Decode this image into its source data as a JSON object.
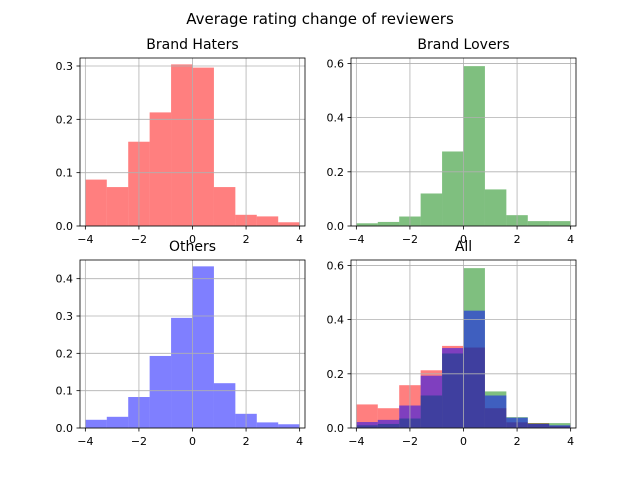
{
  "figure": {
    "suptitle": "Average rating change of reviewers"
  },
  "chart_data": [
    {
      "type": "bar",
      "title": "Brand Haters",
      "xlim": [
        -4.2,
        4.2
      ],
      "ylim": [
        0,
        0.315
      ],
      "xticks": [
        -4,
        -2,
        0,
        2,
        4
      ],
      "yticks": [
        0.0,
        0.1,
        0.2,
        0.3
      ],
      "ytick_labels": [
        "0.0",
        "0.1",
        "0.2",
        "0.3"
      ],
      "xtick_labels": [
        "−4",
        "−2",
        "0",
        "2",
        "4"
      ],
      "grid": true,
      "series": [
        {
          "color": "#ff0000",
          "alpha": 0.5,
          "bin_edges": [
            -4,
            -3.2,
            -2.4,
            -1.6,
            -0.8,
            0,
            0.8,
            1.6,
            2.4,
            3.2,
            4
          ],
          "values": [
            0.087,
            0.073,
            0.158,
            0.213,
            0.303,
            0.297,
            0.073,
            0.021,
            0.018,
            0.007
          ]
        }
      ]
    },
    {
      "type": "bar",
      "title": "Brand Lovers",
      "xlim": [
        -4.2,
        4.2
      ],
      "ylim": [
        0,
        0.62
      ],
      "xticks": [
        -4,
        -2,
        0,
        2,
        4
      ],
      "yticks": [
        0.0,
        0.2,
        0.4,
        0.6
      ],
      "ytick_labels": [
        "0.0",
        "0.2",
        "0.4",
        "0.6"
      ],
      "xtick_labels": [
        "−4",
        "−2",
        "0",
        "2",
        "4"
      ],
      "grid": true,
      "series": [
        {
          "color": "#008000",
          "alpha": 0.5,
          "bin_edges": [
            -4,
            -3.2,
            -2.4,
            -1.6,
            -0.8,
            0,
            0.8,
            1.6,
            2.4,
            3.2,
            4
          ],
          "values": [
            0.01,
            0.015,
            0.035,
            0.12,
            0.275,
            0.59,
            0.135,
            0.04,
            0.018,
            0.018
          ]
        }
      ]
    },
    {
      "type": "bar",
      "title": "Others",
      "xlim": [
        -4.2,
        4.2
      ],
      "ylim": [
        0,
        0.45
      ],
      "xticks": [
        -4,
        -2,
        0,
        2,
        4
      ],
      "yticks": [
        0.0,
        0.1,
        0.2,
        0.3,
        0.4
      ],
      "ytick_labels": [
        "0.0",
        "0.1",
        "0.2",
        "0.3",
        "0.4"
      ],
      "xtick_labels": [
        "−4",
        "−2",
        "0",
        "2",
        "4"
      ],
      "grid": true,
      "series": [
        {
          "color": "#0000ff",
          "alpha": 0.5,
          "bin_edges": [
            -4,
            -3.2,
            -2.4,
            -1.6,
            -0.8,
            0,
            0.8,
            1.6,
            2.4,
            3.2,
            4
          ],
          "values": [
            0.022,
            0.03,
            0.083,
            0.193,
            0.295,
            0.433,
            0.12,
            0.038,
            0.015,
            0.01
          ]
        }
      ]
    },
    {
      "type": "bar",
      "title": "All",
      "xlim": [
        -4.2,
        4.2
      ],
      "ylim": [
        0,
        0.62
      ],
      "xticks": [
        -4,
        -2,
        0,
        2,
        4
      ],
      "yticks": [
        0.0,
        0.2,
        0.4,
        0.6
      ],
      "ytick_labels": [
        "0.0",
        "0.2",
        "0.4",
        "0.6"
      ],
      "xtick_labels": [
        "−4",
        "−2",
        "0",
        "2",
        "4"
      ],
      "grid": true,
      "series": [
        {
          "color": "#ff0000",
          "alpha": 0.5,
          "bin_edges": [
            -4,
            -3.2,
            -2.4,
            -1.6,
            -0.8,
            0,
            0.8,
            1.6,
            2.4,
            3.2,
            4
          ],
          "values": [
            0.087,
            0.073,
            0.158,
            0.213,
            0.303,
            0.297,
            0.073,
            0.021,
            0.018,
            0.007
          ]
        },
        {
          "color": "#008000",
          "alpha": 0.5,
          "bin_edges": [
            -4,
            -3.2,
            -2.4,
            -1.6,
            -0.8,
            0,
            0.8,
            1.6,
            2.4,
            3.2,
            4
          ],
          "values": [
            0.01,
            0.015,
            0.035,
            0.12,
            0.275,
            0.59,
            0.135,
            0.04,
            0.018,
            0.018
          ]
        },
        {
          "color": "#0000ff",
          "alpha": 0.5,
          "bin_edges": [
            -4,
            -3.2,
            -2.4,
            -1.6,
            -0.8,
            0,
            0.8,
            1.6,
            2.4,
            3.2,
            4
          ],
          "values": [
            0.022,
            0.03,
            0.083,
            0.193,
            0.295,
            0.433,
            0.12,
            0.038,
            0.015,
            0.01
          ]
        }
      ]
    }
  ]
}
